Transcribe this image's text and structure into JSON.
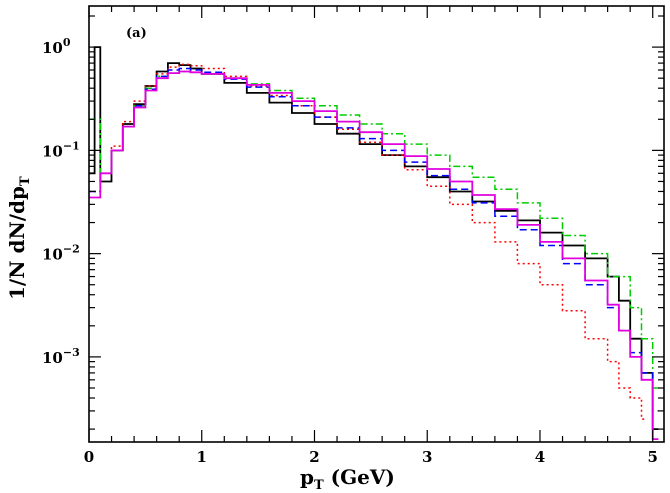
{
  "chart_data": {
    "type": "line",
    "panel_label": "(a)",
    "xlabel": "p",
    "xlabel_sub": "T",
    "xlabel_unit": " (GeV)",
    "ylabel": "1/N dN/dp",
    "ylabel_sub": "T",
    "xlim": [
      0,
      5.1
    ],
    "ylim": [
      0.00015,
      2.5
    ],
    "y_scale": "log",
    "x_ticks": [
      0,
      1,
      2,
      3,
      4,
      5
    ],
    "x_tick_labels": [
      "0",
      "1",
      "2",
      "3",
      "4",
      "5"
    ],
    "y_ticks": [
      1,
      0.1,
      0.01,
      0.001
    ],
    "y_tick_labels": [
      {
        "base": "10",
        "exp": "0"
      },
      {
        "base": "10",
        "exp": "−1"
      },
      {
        "base": "10",
        "exp": "−2"
      },
      {
        "base": "10",
        "exp": "−3"
      }
    ],
    "grid": false,
    "series": [
      {
        "color": "#000000",
        "style": "solid",
        "x": [
          0,
          0.05,
          0.1,
          0.2,
          0.3,
          0.4,
          0.5,
          0.6,
          0.7,
          0.8,
          0.9,
          1.0,
          1.2,
          1.4,
          1.6,
          1.8,
          2.0,
          2.2,
          2.4,
          2.6,
          2.8,
          3.0,
          3.2,
          3.4,
          3.6,
          3.8,
          4.0,
          4.2,
          4.4,
          4.6,
          4.7,
          4.8,
          4.9,
          5.0
        ],
        "y": [
          0.06,
          1.0,
          0.05,
          0.1,
          0.18,
          0.28,
          0.42,
          0.58,
          0.7,
          0.67,
          0.62,
          0.55,
          0.45,
          0.36,
          0.29,
          0.23,
          0.18,
          0.145,
          0.115,
          0.09,
          0.07,
          0.055,
          0.04,
          0.032,
          0.026,
          0.021,
          0.016,
          0.012,
          0.009,
          0.006,
          0.0035,
          0.0015,
          0.0007,
          0.0002
        ]
      },
      {
        "color": "#ff0000",
        "style": "dotted",
        "x": [
          0,
          0.1,
          0.2,
          0.3,
          0.4,
          0.5,
          0.6,
          0.7,
          0.8,
          0.9,
          1.0,
          1.2,
          1.4,
          1.6,
          1.8,
          2.0,
          2.2,
          2.4,
          2.6,
          2.8,
          3.0,
          3.2,
          3.4,
          3.6,
          3.8,
          4.0,
          4.2,
          4.4,
          4.6,
          4.7,
          4.8,
          4.9
        ],
        "y": [
          0.04,
          0.06,
          0.11,
          0.19,
          0.3,
          0.42,
          0.55,
          0.64,
          0.68,
          0.66,
          0.62,
          0.52,
          0.42,
          0.34,
          0.27,
          0.21,
          0.16,
          0.12,
          0.09,
          0.065,
          0.045,
          0.03,
          0.02,
          0.013,
          0.008,
          0.005,
          0.0028,
          0.0015,
          0.0009,
          0.0005,
          0.0004,
          0.00025
        ]
      },
      {
        "color": "#00cc00",
        "style": "dash-dot",
        "x": [
          0,
          0.1,
          0.2,
          0.3,
          0.4,
          0.5,
          0.6,
          0.7,
          0.8,
          0.9,
          1.0,
          1.2,
          1.4,
          1.6,
          1.8,
          2.0,
          2.2,
          2.4,
          2.6,
          2.8,
          3.0,
          3.2,
          3.4,
          3.6,
          3.8,
          4.0,
          4.2,
          4.4,
          4.6,
          4.8,
          4.9,
          5.0
        ],
        "y": [
          0.2,
          0.06,
          0.1,
          0.17,
          0.27,
          0.4,
          0.52,
          0.56,
          0.58,
          0.57,
          0.55,
          0.5,
          0.44,
          0.38,
          0.32,
          0.27,
          0.22,
          0.18,
          0.145,
          0.115,
          0.09,
          0.07,
          0.055,
          0.042,
          0.031,
          0.022,
          0.015,
          0.01,
          0.006,
          0.003,
          0.0015,
          0.0005
        ]
      },
      {
        "color": "#0000ff",
        "style": "dashed",
        "x": [
          0,
          0.1,
          0.2,
          0.3,
          0.4,
          0.5,
          0.6,
          0.7,
          0.8,
          0.9,
          1.0,
          1.2,
          1.4,
          1.6,
          1.8,
          2.0,
          2.2,
          2.4,
          2.6,
          2.8,
          3.0,
          3.2,
          3.4,
          3.6,
          3.8,
          4.0,
          4.2,
          4.4,
          4.6,
          4.7,
          4.8,
          4.9,
          5.0
        ],
        "y": [
          0.04,
          0.06,
          0.1,
          0.17,
          0.27,
          0.39,
          0.52,
          0.6,
          0.62,
          0.6,
          0.57,
          0.49,
          0.41,
          0.33,
          0.27,
          0.21,
          0.165,
          0.13,
          0.1,
          0.077,
          0.057,
          0.042,
          0.031,
          0.023,
          0.017,
          0.012,
          0.008,
          0.005,
          0.003,
          0.0018,
          0.0011,
          0.0007,
          0.0003
        ]
      },
      {
        "color": "#e000e0",
        "style": "solid",
        "x": [
          0,
          0.1,
          0.2,
          0.3,
          0.4,
          0.5,
          0.6,
          0.7,
          0.8,
          0.9,
          1.0,
          1.2,
          1.4,
          1.6,
          1.8,
          2.0,
          2.2,
          2.4,
          2.6,
          2.8,
          3.0,
          3.2,
          3.4,
          3.6,
          3.8,
          4.0,
          4.2,
          4.4,
          4.6,
          4.7,
          4.8,
          4.9,
          5.0
        ],
        "y": [
          0.035,
          0.06,
          0.1,
          0.17,
          0.26,
          0.38,
          0.5,
          0.56,
          0.58,
          0.57,
          0.55,
          0.5,
          0.43,
          0.36,
          0.3,
          0.24,
          0.19,
          0.15,
          0.115,
          0.088,
          0.066,
          0.05,
          0.037,
          0.027,
          0.019,
          0.013,
          0.009,
          0.0055,
          0.0032,
          0.0018,
          0.001,
          0.0006,
          0.00016
        ]
      }
    ]
  }
}
